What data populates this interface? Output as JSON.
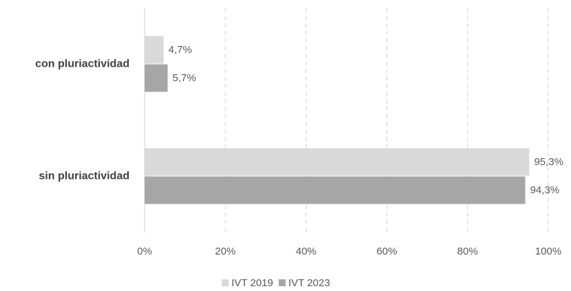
{
  "chart_data": {
    "type": "hbar",
    "categories": [
      "con pluriactividad",
      "sin pluriactividad"
    ],
    "series": [
      {
        "name": "IVT 2019",
        "color": "#d9d9d9",
        "values": [
          4.7,
          95.3
        ],
        "value_labels": [
          "4,7%",
          "95,3%"
        ]
      },
      {
        "name": "IVT 2023",
        "color": "#a6a6a6",
        "values": [
          5.7,
          94.3
        ],
        "value_labels": [
          "5,7%",
          "94,3%"
        ]
      }
    ],
    "xlim": [
      0,
      100
    ],
    "xticks": [
      {
        "value": 0,
        "label": "0%"
      },
      {
        "value": 20,
        "label": "20%"
      },
      {
        "value": 40,
        "label": "40%"
      },
      {
        "value": 60,
        "label": "60%"
      },
      {
        "value": 80,
        "label": "80%"
      },
      {
        "value": 100,
        "label": "100%"
      }
    ],
    "grid": true,
    "legend": "bottom"
  }
}
